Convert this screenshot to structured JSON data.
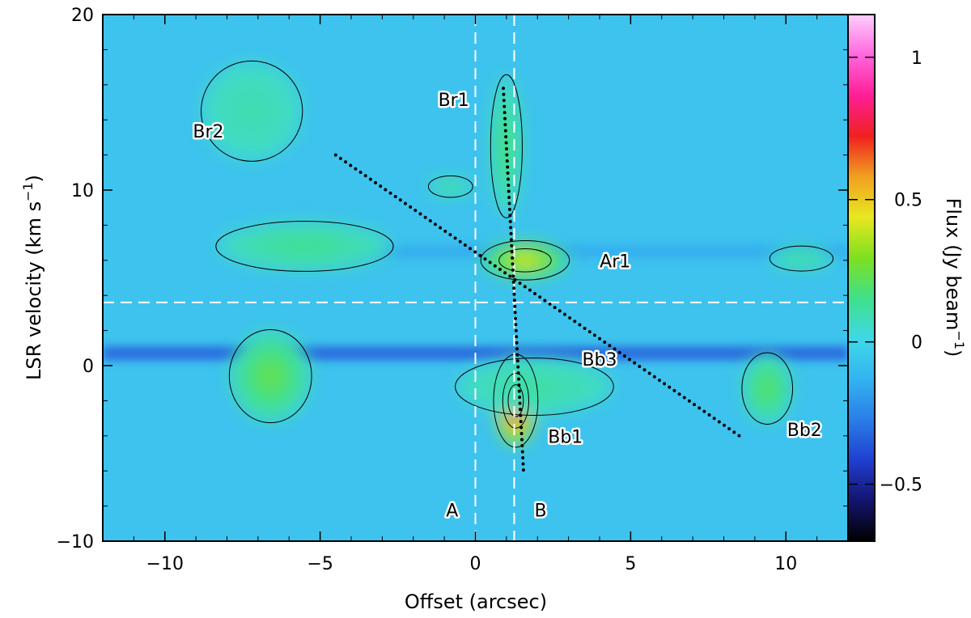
{
  "chart_data": {
    "type": "heatmap",
    "xlabel": "Offset (arcsec)",
    "ylabel": "LSR velocity (km s",
    "ylabel_sup": "−1",
    "ylabel_close": ")",
    "xlim": [
      -12,
      12
    ],
    "ylim": [
      -10,
      20
    ],
    "x_ticks": [
      -10,
      -5,
      0,
      5,
      10
    ],
    "x_tick_labels": [
      "−10",
      "−5",
      "0",
      "5",
      "10"
    ],
    "y_ticks": [
      -10,
      0,
      10,
      20
    ],
    "y_tick_labels": [
      "−10",
      "0",
      "10",
      "20"
    ],
    "colorbar": {
      "label": "Flux (Jy beam",
      "label_sup": "−1",
      "label_close": ")",
      "range": [
        -0.7,
        1.15
      ],
      "ticks": [
        -0.5,
        0,
        0.5,
        1
      ],
      "tick_labels": [
        "−0.5",
        "0",
        "0.5",
        "1"
      ],
      "colors": [
        "#000000",
        "#14146e",
        "#1f3fd0",
        "#2a7ee8",
        "#33b4f0",
        "#3fd8e8",
        "#3fe08a",
        "#7ee020",
        "#e8e820",
        "#f0a020",
        "#f02020",
        "#ff1e96",
        "#ff66dd",
        "#ffd0ff"
      ]
    },
    "background_color": "#3ec3ee",
    "reference_lines": {
      "vertical": [
        0,
        1.25
      ],
      "horizontal": [
        3.6
      ],
      "color": "#ffffff",
      "style": "dashed"
    },
    "dotted_lines": [
      {
        "x": [
          -4.5,
          8.5
        ],
        "y": [
          12.0,
          -4.0
        ]
      },
      {
        "x": [
          0.9,
          1.55
        ],
        "y": [
          15.8,
          -6.0
        ]
      }
    ],
    "annotations": [
      {
        "text": "Br2",
        "x": -8.6,
        "y": 13.0
      },
      {
        "text": "Br1",
        "x": -0.7,
        "y": 14.8
      },
      {
        "text": "Ar1",
        "x": 4.5,
        "y": 5.6
      },
      {
        "text": "Bb3",
        "x": 4.0,
        "y": 0.0
      },
      {
        "text": "Bb1",
        "x": 2.9,
        "y": -4.4
      },
      {
        "text": "Bb2",
        "x": 10.6,
        "y": -4.0
      },
      {
        "text": "A",
        "x": -0.75,
        "y": -8.6
      },
      {
        "text": "B",
        "x": 2.1,
        "y": -8.6
      }
    ],
    "emission_blobs": [
      {
        "x": -6.6,
        "y": -0.6,
        "rx": 1.3,
        "ry": 2.6,
        "peak": 0.25
      },
      {
        "x": -7.2,
        "y": 14.5,
        "rx": 1.6,
        "ry": 2.8,
        "peak": 0.1
      },
      {
        "x": -5.5,
        "y": 6.8,
        "rx": 2.8,
        "ry": 1.4,
        "peak": 0.15
      },
      {
        "x": -0.8,
        "y": 10.2,
        "rx": 0.7,
        "ry": 0.6,
        "peak": 0.12
      },
      {
        "x": 1.0,
        "y": 12.5,
        "rx": 0.5,
        "ry": 4.0,
        "peak": 0.18
      },
      {
        "x": 1.6,
        "y": 6.0,
        "rx": 1.4,
        "ry": 1.1,
        "peak": 0.45
      },
      {
        "x": 1.3,
        "y": -2.0,
        "rx": 0.7,
        "ry": 2.6,
        "peak": 1.0
      },
      {
        "x": 1.9,
        "y": -1.2,
        "rx": 2.5,
        "ry": 1.6,
        "peak": 0.12
      },
      {
        "x": 9.4,
        "y": -1.3,
        "rx": 0.8,
        "ry": 2.0,
        "peak": 0.22
      },
      {
        "x": 10.5,
        "y": 6.1,
        "rx": 1.0,
        "ry": 0.7,
        "peak": 0.12
      }
    ],
    "absorption_bands": [
      {
        "y": 0.7,
        "x": [
          -12,
          12
        ],
        "level": -0.35
      },
      {
        "y": 6.5,
        "x": [
          -4,
          12
        ],
        "level": -0.15
      }
    ]
  }
}
